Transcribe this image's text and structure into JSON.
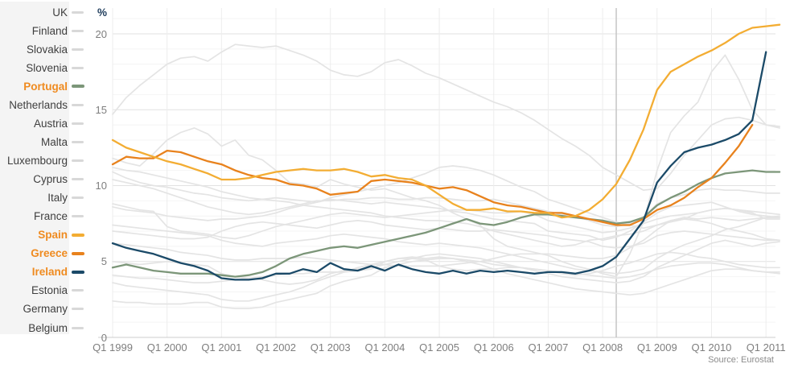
{
  "source_note": "Source: Eurostat",
  "colors": {
    "background": "#ffffff",
    "sidebar_panel": "#f4f4f4",
    "label_normal": "#3f3f3f",
    "label_highlight": "#ef8b20",
    "swatch_gray": "#d8d8d8",
    "gray_line": "#e4e4e4",
    "grid_minor": "#f4f4f4",
    "grid_major": "#e2e2e2",
    "grid_year": "#ededed",
    "baseline": "#cccccc",
    "marker_line": "#c5c5c5",
    "axis_text": "#7e7e7e",
    "unit_label_color": "#1f3d5c",
    "spain": "#f3ad33",
    "greece": "#e8821d",
    "ireland": "#1b4a68",
    "portugal": "#7c9679"
  },
  "sidebar": {
    "items": [
      {
        "label": "UK",
        "highlighted": false
      },
      {
        "label": "Finland",
        "highlighted": false
      },
      {
        "label": "Slovakia",
        "highlighted": false
      },
      {
        "label": "Slovenia",
        "highlighted": false
      },
      {
        "label": "Portugal",
        "highlighted": true,
        "color": "#7c9679"
      },
      {
        "label": "Netherlands",
        "highlighted": false
      },
      {
        "label": "Austria",
        "highlighted": false
      },
      {
        "label": "Malta",
        "highlighted": false
      },
      {
        "label": "Luxembourg",
        "highlighted": false
      },
      {
        "label": "Cyprus",
        "highlighted": false
      },
      {
        "label": "Italy",
        "highlighted": false
      },
      {
        "label": "France",
        "highlighted": false
      },
      {
        "label": "Spain",
        "highlighted": true,
        "color": "#f3ad33"
      },
      {
        "label": "Greece",
        "highlighted": true,
        "color": "#e8821d"
      },
      {
        "label": "Ireland",
        "highlighted": true,
        "color": "#1b4a68"
      },
      {
        "label": "Estonia",
        "highlighted": false
      },
      {
        "label": "Germany",
        "highlighted": false
      },
      {
        "label": "Belgium",
        "highlighted": false
      }
    ]
  },
  "chart_data": {
    "type": "line",
    "title": "",
    "ylabel_unit": "%",
    "x_unit": "quarter",
    "x_start": "Q1 1999",
    "x_end": "Q1 2011",
    "ylim": [
      0,
      21.7
    ],
    "grid": true,
    "legend_position": "left",
    "marker_line_quarter": "Q2 2008",
    "y_ticks": [
      0,
      5,
      10,
      15,
      20
    ],
    "x_tick_labels": [
      "Q1 1999",
      "Q1 2000",
      "Q1 2001",
      "Q1 2002",
      "Q1 2003",
      "Q1 2004",
      "Q1 2005",
      "Q1 2006",
      "Q1 2007",
      "Q1 2008",
      "Q1 2009",
      "Q1 2010",
      "Q1 2011"
    ],
    "series": [
      {
        "name": "UK",
        "highlighted": false,
        "values": [
          6.2,
          6.1,
          6.0,
          5.9,
          5.8,
          5.6,
          5.5,
          5.4,
          5.2,
          5.1,
          5.1,
          5.2,
          5.2,
          5.2,
          5.3,
          5.2,
          5.1,
          5.0,
          4.9,
          4.8,
          4.8,
          4.7,
          4.7,
          4.7,
          4.7,
          4.8,
          4.9,
          5.0,
          5.2,
          5.4,
          5.5,
          5.5,
          5.5,
          5.4,
          5.3,
          5.2,
          5.2,
          5.4,
          5.9,
          6.4,
          7.1,
          7.7,
          7.9,
          7.8,
          7.9,
          7.8,
          7.7,
          7.8,
          7.9,
          7.9
        ]
      },
      {
        "name": "Finland",
        "highlighted": false,
        "values": [
          10.9,
          10.5,
          10.2,
          10.0,
          9.9,
          9.7,
          9.5,
          9.4,
          9.2,
          9.1,
          9.0,
          9.1,
          9.2,
          9.1,
          9.0,
          8.9,
          9.1,
          9.0,
          8.9,
          8.8,
          8.9,
          8.8,
          8.7,
          8.6,
          8.5,
          8.3,
          8.2,
          8.0,
          7.8,
          7.7,
          7.6,
          7.5,
          7.0,
          6.9,
          6.8,
          6.7,
          6.4,
          6.6,
          7.0,
          7.6,
          8.2,
          8.6,
          8.7,
          8.8,
          8.9,
          8.6,
          8.3,
          8.1,
          8.0,
          7.9
        ]
      },
      {
        "name": "Slovakia",
        "highlighted": false,
        "values": [
          14.7,
          15.8,
          16.6,
          17.3,
          18.0,
          18.4,
          18.5,
          18.2,
          18.8,
          19.3,
          19.2,
          19.1,
          19.2,
          18.9,
          18.6,
          18.2,
          17.6,
          17.3,
          17.2,
          17.5,
          18.1,
          18.3,
          17.9,
          17.4,
          17.1,
          16.7,
          16.3,
          15.9,
          15.5,
          15.2,
          14.8,
          14.3,
          13.7,
          13.1,
          12.6,
          12.0,
          11.2,
          10.7,
          10.2,
          9.7,
          9.8,
          10.8,
          12.0,
          13.0,
          14.0,
          14.4,
          14.5,
          14.3,
          14.0,
          13.9
        ]
      },
      {
        "name": "Slovenia",
        "highlighted": false,
        "values": [
          7.4,
          7.3,
          7.2,
          7.1,
          7.0,
          6.9,
          6.8,
          6.7,
          6.4,
          6.2,
          6.1,
          6.0,
          6.2,
          6.3,
          6.4,
          6.5,
          6.7,
          6.8,
          6.7,
          6.6,
          6.5,
          6.3,
          6.2,
          6.1,
          6.2,
          6.1,
          6.0,
          5.9,
          5.7,
          5.5,
          5.3,
          5.1,
          4.9,
          4.7,
          4.5,
          4.4,
          4.3,
          4.2,
          4.3,
          4.5,
          5.2,
          5.7,
          6.1,
          6.4,
          6.7,
          7.1,
          7.3,
          7.6,
          7.9,
          8.0
        ]
      },
      {
        "name": "Netherlands",
        "highlighted": false,
        "values": [
          3.6,
          3.4,
          3.3,
          3.2,
          3.1,
          3.0,
          2.9,
          2.8,
          2.5,
          2.4,
          2.4,
          2.6,
          2.8,
          3.0,
          3.3,
          3.7,
          4.0,
          4.3,
          4.6,
          4.8,
          5.0,
          5.2,
          5.3,
          5.2,
          5.3,
          5.2,
          5.0,
          4.8,
          4.5,
          4.2,
          4.0,
          3.8,
          3.6,
          3.4,
          3.2,
          3.1,
          3.0,
          2.9,
          2.8,
          2.9,
          3.2,
          3.5,
          3.8,
          4.1,
          4.4,
          4.5,
          4.5,
          4.4,
          4.3,
          4.2
        ]
      },
      {
        "name": "Austria",
        "highlighted": false,
        "values": [
          4.1,
          4.0,
          3.9,
          3.9,
          3.8,
          3.7,
          3.6,
          3.6,
          3.7,
          3.8,
          3.9,
          4.0,
          4.1,
          4.2,
          4.2,
          4.3,
          4.3,
          4.3,
          4.4,
          4.5,
          5.0,
          5.2,
          5.2,
          5.1,
          5.2,
          5.2,
          5.1,
          5.0,
          4.8,
          4.7,
          4.6,
          4.5,
          4.4,
          4.3,
          4.2,
          4.1,
          4.0,
          3.9,
          4.0,
          4.2,
          4.5,
          4.7,
          4.8,
          4.9,
          4.9,
          4.8,
          4.6,
          4.4,
          4.3,
          4.3
        ]
      },
      {
        "name": "Malta",
        "highlighted": false,
        "values": [
          7.0,
          6.9,
          6.8,
          6.7,
          6.6,
          6.5,
          6.5,
          6.6,
          7.0,
          7.3,
          7.5,
          7.6,
          7.5,
          7.4,
          7.3,
          7.2,
          7.4,
          7.6,
          7.7,
          7.6,
          7.4,
          7.3,
          7.2,
          7.1,
          7.2,
          7.1,
          7.0,
          7.0,
          7.1,
          7.0,
          6.9,
          6.8,
          6.7,
          6.5,
          6.4,
          6.3,
          6.0,
          5.9,
          6.0,
          6.2,
          6.7,
          6.9,
          7.0,
          6.9,
          6.8,
          6.7,
          6.6,
          6.5,
          6.4,
          6.4
        ]
      },
      {
        "name": "Luxembourg",
        "highlighted": false,
        "values": [
          2.4,
          2.3,
          2.3,
          2.2,
          2.2,
          2.2,
          2.3,
          2.3,
          2.0,
          1.9,
          1.9,
          2.0,
          2.3,
          2.5,
          2.7,
          2.9,
          3.4,
          3.7,
          3.9,
          4.1,
          4.6,
          4.8,
          5.0,
          5.1,
          4.7,
          4.5,
          4.4,
          4.5,
          4.5,
          4.6,
          4.6,
          4.5,
          4.4,
          4.2,
          4.1,
          4.2,
          4.4,
          4.7,
          4.9,
          5.2,
          5.5,
          5.6,
          5.5,
          5.3,
          5.2,
          5.0,
          4.8,
          4.7,
          4.6,
          4.6
        ]
      },
      {
        "name": "Cyprus",
        "highlighted": false,
        "values": [
          5.0,
          4.9,
          4.8,
          4.9,
          5.0,
          4.9,
          4.8,
          4.7,
          4.2,
          4.0,
          3.9,
          3.8,
          3.6,
          3.5,
          3.6,
          3.8,
          4.2,
          4.4,
          4.5,
          4.6,
          4.8,
          5.0,
          5.2,
          5.4,
          5.5,
          5.4,
          5.3,
          5.2,
          5.0,
          4.8,
          4.6,
          4.4,
          4.2,
          4.0,
          3.9,
          3.8,
          3.7,
          3.6,
          3.7,
          4.0,
          4.6,
          5.0,
          5.4,
          5.8,
          6.2,
          6.4,
          6.2,
          6.0,
          6.2,
          6.3
        ]
      },
      {
        "name": "Italy",
        "highlighted": false,
        "values": [
          11.2,
          11.0,
          10.9,
          10.7,
          10.5,
          10.3,
          10.1,
          9.9,
          9.6,
          9.4,
          9.2,
          9.1,
          9.0,
          8.9,
          8.7,
          8.6,
          8.5,
          8.4,
          8.3,
          8.2,
          8.0,
          7.9,
          7.8,
          7.7,
          7.7,
          7.6,
          7.5,
          7.3,
          7.0,
          6.8,
          6.6,
          6.4,
          6.2,
          6.0,
          6.1,
          6.4,
          6.5,
          6.7,
          6.8,
          7.0,
          7.4,
          7.6,
          7.8,
          8.2,
          8.4,
          8.5,
          8.4,
          8.3,
          8.2,
          8.1
        ]
      },
      {
        "name": "France",
        "highlighted": false,
        "values": [
          10.4,
          10.2,
          10.0,
          9.8,
          9.5,
          9.2,
          8.9,
          8.6,
          8.4,
          8.2,
          8.1,
          8.2,
          8.4,
          8.6,
          8.8,
          9.0,
          9.0,
          9.1,
          9.1,
          9.2,
          9.2,
          9.1,
          9.1,
          9.2,
          9.2,
          9.1,
          9.0,
          9.0,
          9.1,
          8.9,
          8.7,
          8.5,
          8.3,
          8.1,
          8.0,
          7.7,
          7.4,
          7.3,
          7.5,
          7.9,
          8.8,
          9.2,
          9.4,
          9.7,
          9.8,
          9.7,
          9.7,
          9.6,
          9.5,
          9.5
        ]
      },
      {
        "name": "Estonia",
        "highlighted": false,
        "values": [
          11.8,
          11.5,
          11.3,
          12.1,
          13.0,
          13.5,
          13.8,
          13.4,
          12.6,
          13.0,
          12.0,
          11.7,
          11.0,
          10.2,
          10.1,
          9.9,
          10.4,
          10.1,
          9.9,
          9.7,
          9.8,
          9.5,
          9.2,
          9.0,
          8.7,
          8.2,
          7.8,
          7.4,
          6.5,
          6.0,
          5.8,
          5.6,
          5.4,
          5.0,
          4.7,
          4.5,
          4.2,
          4.0,
          5.5,
          7.6,
          11.0,
          13.5,
          14.6,
          15.5,
          17.5,
          18.6,
          17.0,
          15.0,
          14.0,
          13.8
        ]
      },
      {
        "name": "Germany",
        "highlighted": false,
        "values": [
          8.6,
          8.4,
          8.3,
          8.2,
          8.0,
          7.9,
          7.8,
          7.7,
          7.8,
          7.8,
          7.9,
          8.0,
          8.2,
          8.5,
          8.7,
          8.9,
          9.2,
          9.4,
          9.6,
          9.8,
          10.0,
          10.2,
          10.5,
          10.8,
          11.2,
          11.3,
          11.2,
          11.0,
          10.7,
          10.3,
          9.9,
          9.6,
          9.1,
          8.8,
          8.5,
          8.2,
          7.9,
          7.6,
          7.4,
          7.2,
          7.4,
          7.7,
          7.8,
          7.7,
          7.5,
          7.2,
          7.0,
          6.8,
          6.5,
          6.4
        ]
      },
      {
        "name": "Belgium",
        "highlighted": false,
        "values": [
          8.8,
          8.6,
          8.4,
          8.3,
          7.3,
          7.0,
          6.9,
          6.8,
          6.6,
          6.5,
          6.7,
          7.0,
          7.3,
          7.5,
          7.7,
          7.9,
          8.1,
          8.2,
          8.1,
          8.0,
          7.9,
          8.0,
          8.1,
          8.2,
          8.3,
          8.4,
          8.4,
          8.3,
          8.2,
          8.2,
          8.3,
          8.1,
          7.7,
          7.5,
          7.3,
          7.1,
          6.9,
          7.0,
          7.2,
          7.5,
          7.8,
          8.0,
          8.1,
          8.2,
          8.4,
          8.5,
          8.4,
          8.2,
          7.8,
          7.8
        ]
      },
      {
        "name": "Portugal",
        "highlighted": true,
        "color": "#7c9679",
        "values": [
          4.6,
          4.8,
          4.6,
          4.4,
          4.3,
          4.2,
          4.2,
          4.2,
          4.1,
          4.0,
          4.1,
          4.3,
          4.7,
          5.2,
          5.5,
          5.7,
          5.9,
          6.0,
          5.9,
          6.1,
          6.3,
          6.5,
          6.7,
          6.9,
          7.2,
          7.5,
          7.8,
          7.5,
          7.4,
          7.6,
          7.9,
          8.1,
          8.1,
          8.0,
          7.9,
          7.8,
          7.7,
          7.5,
          7.6,
          7.9,
          8.7,
          9.2,
          9.6,
          10.1,
          10.5,
          10.8,
          10.9,
          11.0,
          10.9,
          10.9
        ]
      },
      {
        "name": "Greece",
        "highlighted": true,
        "color": "#e8821d",
        "values": [
          11.4,
          11.9,
          11.8,
          11.8,
          12.3,
          12.2,
          11.9,
          11.6,
          11.4,
          11.0,
          10.7,
          10.5,
          10.4,
          10.1,
          10.0,
          9.8,
          9.4,
          9.5,
          9.6,
          10.3,
          10.4,
          10.3,
          10.2,
          10.0,
          9.8,
          9.9,
          9.7,
          9.3,
          8.9,
          8.7,
          8.6,
          8.4,
          8.2,
          8.2,
          8.0,
          7.8,
          7.6,
          7.4,
          7.4,
          7.8,
          8.4,
          8.7,
          9.2,
          9.9,
          10.5,
          11.5,
          12.6,
          14.0
        ]
      },
      {
        "name": "Spain",
        "highlighted": true,
        "color": "#f3ad33",
        "values": [
          13.0,
          12.5,
          12.2,
          11.9,
          11.6,
          11.4,
          11.1,
          10.8,
          10.4,
          10.4,
          10.5,
          10.7,
          10.9,
          11.0,
          11.1,
          11.0,
          11.0,
          11.1,
          10.9,
          10.6,
          10.7,
          10.5,
          10.4,
          10.0,
          9.4,
          8.8,
          8.4,
          8.4,
          8.5,
          8.3,
          8.3,
          8.2,
          8.2,
          7.9,
          8.0,
          8.4,
          9.1,
          10.1,
          11.7,
          13.7,
          16.3,
          17.5,
          18.0,
          18.5,
          18.9,
          19.4,
          20.0,
          20.4,
          20.5,
          20.6
        ]
      },
      {
        "name": "Ireland",
        "highlighted": true,
        "color": "#1b4a68",
        "values": [
          6.2,
          5.9,
          5.7,
          5.5,
          5.2,
          4.9,
          4.7,
          4.4,
          3.9,
          3.8,
          3.8,
          3.9,
          4.2,
          4.2,
          4.5,
          4.3,
          4.9,
          4.5,
          4.4,
          4.7,
          4.4,
          4.8,
          4.5,
          4.3,
          4.2,
          4.4,
          4.2,
          4.4,
          4.3,
          4.4,
          4.3,
          4.2,
          4.3,
          4.3,
          4.2,
          4.4,
          4.7,
          5.3,
          6.5,
          7.7,
          10.2,
          11.3,
          12.2,
          12.5,
          12.7,
          13.0,
          13.4,
          14.3,
          18.8
        ]
      }
    ]
  }
}
